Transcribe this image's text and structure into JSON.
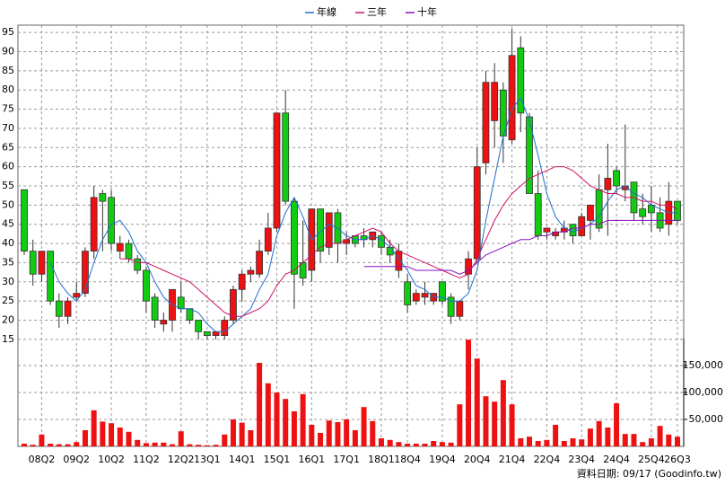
{
  "chart_data": {
    "type": "candlestick",
    "categories": [
      null,
      null,
      "08Q2",
      null,
      null,
      null,
      "09Q2",
      null,
      null,
      null,
      "10Q2",
      null,
      null,
      null,
      "11Q2",
      null,
      null,
      null,
      "12Q2",
      null,
      null,
      "13Q1",
      null,
      null,
      null,
      "14Q1",
      null,
      null,
      null,
      "15Q1",
      null,
      null,
      null,
      "16Q1",
      null,
      null,
      null,
      "17Q1",
      null,
      null,
      null,
      "18Q1",
      null,
      null,
      "18Q4",
      null,
      null,
      null,
      "19Q4",
      null,
      null,
      null,
      "20Q4",
      null,
      null,
      null,
      "21Q4",
      null,
      null,
      null,
      "22Q4",
      null,
      null,
      null,
      "23Q4",
      null,
      null,
      null,
      "24Q4",
      null,
      null,
      null,
      "25Q4",
      null,
      null,
      "26Q3"
    ],
    "open": [
      54,
      38,
      32,
      38,
      25,
      21,
      26,
      27,
      38,
      53,
      52,
      38,
      40,
      36,
      33,
      26,
      19,
      20,
      26,
      23,
      20,
      17,
      16,
      16,
      20,
      28,
      32,
      32,
      38,
      44,
      74,
      51,
      35,
      33,
      49,
      39,
      48,
      40,
      42,
      42,
      41,
      42,
      39,
      33,
      30,
      25,
      26,
      25,
      30,
      26,
      21,
      32,
      36,
      61,
      72,
      80,
      67,
      91,
      73,
      53,
      43,
      42,
      43,
      45,
      42,
      46,
      54,
      54,
      59,
      54,
      56,
      49,
      50,
      48,
      45,
      51
    ],
    "high": [
      54,
      41,
      38,
      38,
      27,
      26,
      30,
      39,
      55,
      54,
      54,
      42,
      41,
      37,
      34,
      27,
      22,
      28,
      30,
      23,
      20,
      17,
      17,
      21,
      29,
      33,
      34,
      41,
      48,
      74,
      80,
      52,
      46,
      49,
      49,
      48,
      49,
      43,
      42,
      44,
      43,
      43,
      41,
      40,
      32,
      28,
      30,
      27,
      30,
      27,
      25,
      38,
      65,
      85,
      87,
      82,
      96,
      94,
      74,
      59,
      44,
      44,
      46,
      45,
      48,
      50,
      58,
      66,
      60,
      71,
      56,
      53,
      55,
      52,
      56,
      51
    ],
    "low": [
      37,
      29,
      30,
      24,
      18,
      19,
      25,
      26,
      36,
      38,
      38,
      36,
      35,
      32,
      22,
      18,
      17,
      17,
      22,
      19,
      15,
      15,
      15,
      15,
      19,
      25,
      30,
      31,
      37,
      43,
      50,
      23,
      29,
      30,
      35,
      37,
      35,
      37,
      39,
      39,
      39,
      37,
      35,
      31,
      22,
      24,
      24,
      24,
      24,
      19,
      20,
      28,
      35,
      58,
      65,
      61,
      66,
      69,
      53,
      41,
      41,
      41,
      41,
      40,
      42,
      41,
      43,
      42,
      53,
      51,
      46,
      45,
      43,
      43,
      42,
      45
    ],
    "close": [
      38,
      32,
      38,
      25,
      21,
      25,
      27,
      38,
      52,
      51,
      40,
      40,
      36,
      33,
      25,
      20,
      20,
      28,
      23,
      20,
      17,
      16,
      17,
      20,
      28,
      32,
      33,
      38,
      44,
      74,
      51,
      32,
      31,
      49,
      38,
      48,
      40,
      41,
      40,
      41,
      43,
      39,
      37,
      38,
      24,
      27,
      27,
      27,
      25,
      21,
      25,
      36,
      60,
      82,
      82,
      68,
      89,
      74,
      53,
      42,
      44,
      43,
      44,
      42,
      47,
      50,
      44,
      57,
      55,
      55,
      48,
      47,
      48,
      44,
      51,
      46
    ],
    "up_color": "#ee1111",
    "down_color": "#11cc11",
    "ylim": [
      13.8,
      96.9
    ],
    "yticks": [
      15,
      20,
      25,
      30,
      35,
      40,
      45,
      50,
      55,
      60,
      65,
      70,
      75,
      80,
      85,
      90,
      95
    ],
    "series": [
      {
        "name": "年線",
        "color": "#1f6fd0",
        "values": [
          null,
          null,
          null,
          35,
          30,
          27,
          25,
          28,
          35,
          41,
          45,
          46,
          43,
          38,
          35,
          30,
          26,
          24,
          23,
          23,
          22,
          19,
          17,
          17,
          19,
          21,
          23,
          28,
          32,
          42,
          48,
          52,
          47,
          41,
          43,
          45,
          44,
          42,
          41,
          41,
          42,
          41,
          39,
          36,
          33,
          29,
          28,
          26,
          26,
          25,
          25,
          27,
          33,
          46,
          57,
          68,
          75,
          78,
          72,
          63,
          53,
          47,
          44,
          43,
          44,
          45,
          47,
          51,
          54,
          55,
          53,
          52,
          50,
          49,
          48,
          48
        ]
      },
      {
        "name": "三年",
        "color": "#d0106a",
        "values": [
          null,
          null,
          null,
          null,
          null,
          null,
          null,
          null,
          null,
          null,
          null,
          36,
          36,
          35,
          35,
          34,
          33,
          32,
          31,
          30,
          28,
          26,
          24,
          22,
          21,
          21,
          22,
          23,
          25,
          29,
          32,
          33,
          35,
          37,
          39,
          40,
          40,
          41,
          42,
          43,
          44,
          43,
          40,
          38,
          37,
          36,
          35,
          34,
          33,
          32,
          31,
          32,
          36,
          41,
          46,
          50,
          53,
          55,
          57,
          58,
          59,
          60,
          60,
          59,
          57,
          55,
          54,
          53,
          53,
          52,
          52,
          51,
          51,
          50,
          50,
          49
        ]
      },
      {
        "name": "十年",
        "color": "#8a10c0",
        "values": [
          null,
          null,
          null,
          null,
          null,
          null,
          null,
          null,
          null,
          null,
          null,
          null,
          null,
          null,
          null,
          null,
          null,
          null,
          null,
          null,
          null,
          null,
          null,
          null,
          null,
          null,
          null,
          null,
          null,
          null,
          null,
          null,
          null,
          null,
          null,
          null,
          null,
          null,
          null,
          34,
          34,
          34,
          34,
          34,
          34,
          33,
          33,
          33,
          33,
          33,
          32,
          33,
          35,
          37,
          38,
          39,
          40,
          41,
          41,
          42,
          42,
          43,
          43,
          44,
          44,
          45,
          45,
          46,
          46,
          46,
          46,
          46,
          46,
          46,
          46,
          46
        ]
      }
    ],
    "volume": {
      "color": "#ee1111",
      "values": [
        5000,
        3000,
        22000,
        5000,
        4000,
        4000,
        8000,
        30000,
        67000,
        46000,
        43000,
        35000,
        27000,
        12000,
        6000,
        7000,
        7000,
        4000,
        28000,
        4000,
        3000,
        2000,
        3000,
        22000,
        50000,
        44000,
        30000,
        155000,
        117000,
        100000,
        88000,
        65000,
        97000,
        40000,
        25000,
        48000,
        45000,
        50000,
        30000,
        73000,
        47000,
        15000,
        12000,
        8000,
        5000,
        5000,
        5000,
        10000,
        8000,
        7000,
        78000,
        198000,
        163000,
        93000,
        83000,
        123000,
        78000,
        15000,
        18000,
        10000,
        12000,
        40000,
        10000,
        15000,
        13000,
        33000,
        47000,
        35000,
        80000,
        23000,
        23000,
        8000,
        15000,
        38000,
        22000,
        18000
      ],
      "ylim": [
        0,
        200000
      ],
      "yticks": [
        {
          "value": 50000,
          "label": "50,000"
        },
        {
          "value": 100000,
          "label": "100,000"
        },
        {
          "value": 150000,
          "label": "150,000"
        }
      ]
    },
    "grid": true,
    "footer": "資料日期: 09/17  (Goodinfo.tw)"
  }
}
